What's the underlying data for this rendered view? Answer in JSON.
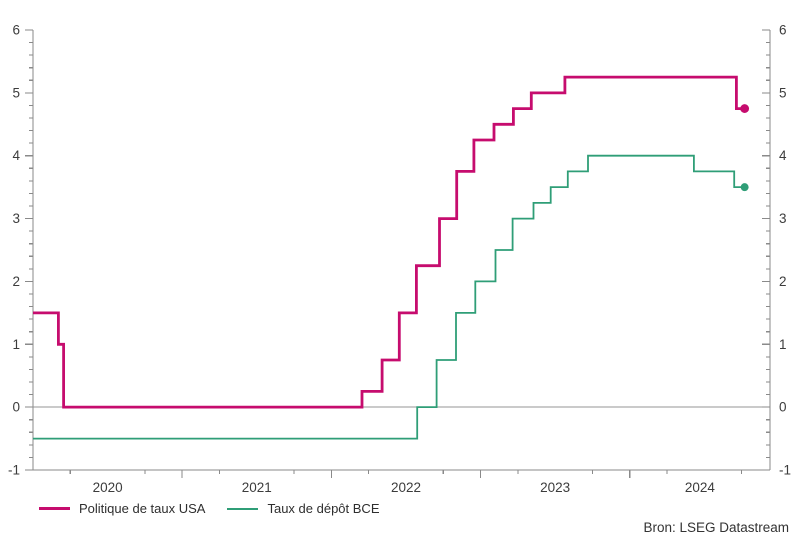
{
  "source_credit": "Bron: LSEG Datastream",
  "chart_data": {
    "type": "line",
    "title": "",
    "xlabel": "",
    "ylabel": "",
    "grid": "zero-line-only",
    "legend_position": "bottom-left",
    "x_range": [
      2020.0,
      2024.94
    ],
    "y_range": [
      -1,
      6
    ],
    "y_major_step": 1,
    "y_minor_step": 0.2,
    "axis_color": "#8a8a8a",
    "zero_line_color": "#949494",
    "label_color": "#3c3c3c",
    "y_axis_labels": [
      {
        "v": -1,
        "t": "-1"
      },
      {
        "v": 0,
        "t": "0"
      },
      {
        "v": 1,
        "t": "1"
      },
      {
        "v": 2,
        "t": "2"
      },
      {
        "v": 3,
        "t": "3"
      },
      {
        "v": 4,
        "t": "4"
      },
      {
        "v": 5,
        "t": "5"
      },
      {
        "v": 6,
        "t": "6"
      }
    ],
    "x_year_ticks": [
      2021,
      2022,
      2023,
      2024
    ],
    "x_minor_ticks": [
      2020.25,
      2020.75,
      2021.25,
      2021.75,
      2022.25,
      2022.75,
      2023.25,
      2023.75,
      2024.25,
      2024.75
    ],
    "x_axis_labels": [
      {
        "v": 2020.5,
        "t": "2020"
      },
      {
        "v": 2021.5,
        "t": "2021"
      },
      {
        "v": 2022.5,
        "t": "2022"
      },
      {
        "v": 2023.5,
        "t": "2023"
      },
      {
        "v": 2024.47,
        "t": "2024"
      }
    ],
    "series": [
      {
        "name": "Politique de taux USA",
        "color": "#c60c6e",
        "width": 2.8,
        "end_dot": true,
        "end_dot_radius": 4.4,
        "x_end": 2024.77,
        "points": [
          [
            2020.0,
            1.5
          ],
          [
            2020.17,
            1.0
          ],
          [
            2020.205,
            0.0
          ],
          [
            2022.205,
            0.25
          ],
          [
            2022.34,
            0.75
          ],
          [
            2022.455,
            1.5
          ],
          [
            2022.57,
            2.25
          ],
          [
            2022.725,
            3.0
          ],
          [
            2022.84,
            3.75
          ],
          [
            2022.955,
            4.25
          ],
          [
            2023.09,
            4.5
          ],
          [
            2023.22,
            4.75
          ],
          [
            2023.34,
            5.0
          ],
          [
            2023.565,
            5.25
          ],
          [
            2024.715,
            4.75
          ]
        ]
      },
      {
        "name": "Taux de dépôt BCE",
        "color": "#2f9e77",
        "width": 1.8,
        "end_dot": true,
        "end_dot_radius": 4.0,
        "x_end": 2024.77,
        "points": [
          [
            2020.0,
            -0.5
          ],
          [
            2022.575,
            0.0
          ],
          [
            2022.705,
            0.75
          ],
          [
            2022.835,
            1.5
          ],
          [
            2022.965,
            2.0
          ],
          [
            2023.1,
            2.5
          ],
          [
            2023.215,
            3.0
          ],
          [
            2023.355,
            3.25
          ],
          [
            2023.47,
            3.5
          ],
          [
            2023.585,
            3.75
          ],
          [
            2023.72,
            4.0
          ],
          [
            2024.43,
            3.75
          ],
          [
            2024.7,
            3.5
          ]
        ]
      }
    ]
  }
}
